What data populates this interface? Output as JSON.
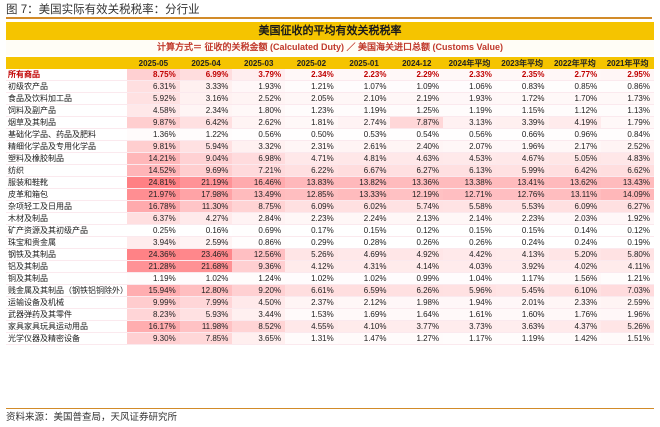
{
  "figure_title": "图 7：美国实际有效关税税率：分行业",
  "banner_title": "美国征收的平均有效关税税率",
  "formula": "计算方式＝ 征收的关税金额 (Calculated Duty) ／ 美国海关进口总额 (Customs Value)",
  "source": "资料来源：美国普查局，天风证券研究所",
  "columns": [
    "",
    "2025-05",
    "2025-04",
    "2025-03",
    "2025-02",
    "2025-01",
    "2024-12",
    "2024年平均",
    "2023年平均",
    "2022年平均",
    "2021年平均"
  ],
  "rows": [
    {
      "name": "所有商品",
      "values": [
        "8.75%",
        "6.99%",
        "3.79%",
        "2.34%",
        "2.23%",
        "2.29%",
        "2.33%",
        "2.35%",
        "2.77%",
        "2.95%"
      ],
      "highlight": true,
      "shade": [
        55,
        40,
        20,
        8,
        8,
        8,
        8,
        8,
        10,
        11
      ]
    },
    {
      "name": "初级农产品",
      "values": [
        "6.31%",
        "3.33%",
        "1.93%",
        "1.21%",
        "1.07%",
        "1.09%",
        "1.06%",
        "0.83%",
        "0.85%",
        "0.86%"
      ],
      "highlight": false,
      "shade": [
        38,
        18,
        9,
        4,
        3,
        3,
        3,
        2,
        2,
        2
      ]
    },
    {
      "name": "食品及饮料加工品",
      "values": [
        "5.92%",
        "3.16%",
        "2.52%",
        "2.05%",
        "2.10%",
        "2.19%",
        "1.93%",
        "1.72%",
        "1.70%",
        "1.73%"
      ],
      "highlight": false,
      "shade": [
        35,
        17,
        13,
        10,
        10,
        10,
        9,
        8,
        8,
        8
      ]
    },
    {
      "name": "饲料及副产品",
      "values": [
        "4.58%",
        "2.34%",
        "1.80%",
        "1.23%",
        "1.19%",
        "1.25%",
        "1.19%",
        "1.15%",
        "1.12%",
        "1.13%"
      ],
      "highlight": false,
      "shade": [
        27,
        12,
        8,
        4,
        4,
        4,
        4,
        4,
        4,
        4
      ]
    },
    {
      "name": "烟草及其制品",
      "values": [
        "9.87%",
        "6.42%",
        "2.62%",
        "1.81%",
        "2.74%",
        "7.87%",
        "3.13%",
        "3.39%",
        "4.19%",
        "1.79%"
      ],
      "highlight": false,
      "shade": [
        58,
        37,
        13,
        8,
        14,
        47,
        16,
        18,
        23,
        8
      ]
    },
    {
      "name": "基础化学品、药品及肥料",
      "values": [
        "1.36%",
        "1.22%",
        "0.56%",
        "0.50%",
        "0.53%",
        "0.54%",
        "0.56%",
        "0.66%",
        "0.96%",
        "0.84%"
      ],
      "highlight": false,
      "shade": [
        5,
        4,
        1,
        1,
        1,
        1,
        1,
        1,
        2,
        2
      ]
    },
    {
      "name": "精细化学品及专用化学品",
      "values": [
        "9.81%",
        "5.94%",
        "3.32%",
        "2.31%",
        "2.61%",
        "2.40%",
        "2.07%",
        "1.96%",
        "2.17%",
        "2.52%"
      ],
      "highlight": false,
      "shade": [
        58,
        35,
        17,
        11,
        13,
        12,
        10,
        9,
        10,
        13
      ]
    },
    {
      "name": "塑料及橡胶制品",
      "values": [
        "14.21%",
        "9.04%",
        "6.98%",
        "4.71%",
        "4.81%",
        "4.63%",
        "4.53%",
        "4.67%",
        "5.05%",
        "4.83%"
      ],
      "highlight": false,
      "shade": [
        85,
        54,
        42,
        27,
        28,
        27,
        26,
        27,
        30,
        28
      ]
    },
    {
      "name": "纺织",
      "values": [
        "14.52%",
        "9.69%",
        "7.21%",
        "6.22%",
        "6.67%",
        "6.27%",
        "6.13%",
        "5.99%",
        "6.42%",
        "6.62%"
      ],
      "highlight": false,
      "shade": [
        87,
        58,
        43,
        37,
        40,
        37,
        36,
        35,
        38,
        39
      ]
    },
    {
      "name": "服装和鞋靴",
      "values": [
        "24.81%",
        "21.19%",
        "16.46%",
        "13.83%",
        "13.82%",
        "13.36%",
        "13.38%",
        "13.41%",
        "13.62%",
        "13.43%"
      ],
      "highlight": false,
      "shade": [
        150,
        128,
        100,
        83,
        83,
        80,
        80,
        80,
        82,
        80
      ]
    },
    {
      "name": "皮革和箱包",
      "values": [
        "21.97%",
        "17.98%",
        "13.49%",
        "12.85%",
        "13.33%",
        "12.19%",
        "12.71%",
        "12.76%",
        "13.11%",
        "14.09%"
      ],
      "highlight": false,
      "shade": [
        133,
        108,
        80,
        77,
        80,
        73,
        76,
        76,
        78,
        85
      ]
    },
    {
      "name": "杂项轻工及日用品",
      "values": [
        "16.78%",
        "11.30%",
        "8.75%",
        "6.09%",
        "6.02%",
        "5.74%",
        "5.58%",
        "5.53%",
        "6.09%",
        "6.27%"
      ],
      "highlight": false,
      "shade": [
        100,
        68,
        52,
        36,
        36,
        34,
        33,
        33,
        36,
        37
      ]
    },
    {
      "name": "木材及制品",
      "values": [
        "6.37%",
        "4.27%",
        "2.84%",
        "2.23%",
        "2.24%",
        "2.13%",
        "2.14%",
        "2.23%",
        "2.03%",
        "1.92%"
      ],
      "highlight": false,
      "shade": [
        38,
        25,
        14,
        10,
        10,
        10,
        10,
        10,
        9,
        9
      ]
    },
    {
      "name": "矿产资源及其初级产品",
      "values": [
        "0.25%",
        "0.16%",
        "0.69%",
        "0.17%",
        "0.15%",
        "0.12%",
        "0.15%",
        "0.15%",
        "0.14%",
        "0.12%"
      ],
      "highlight": false,
      "shade": [
        0,
        0,
        1,
        0,
        0,
        0,
        0,
        0,
        0,
        0
      ]
    },
    {
      "name": "珠宝和贵金属",
      "values": [
        "3.94%",
        "2.59%",
        "0.86%",
        "0.29%",
        "0.28%",
        "0.26%",
        "0.26%",
        "0.24%",
        "0.24%",
        "0.19%"
      ],
      "highlight": false,
      "shade": [
        22,
        13,
        2,
        0,
        0,
        0,
        0,
        0,
        0,
        0
      ]
    },
    {
      "name": "钢铁及其制品",
      "values": [
        "24.36%",
        "23.46%",
        "12.56%",
        "5.26%",
        "4.69%",
        "4.92%",
        "4.42%",
        "4.13%",
        "5.20%",
        "5.80%"
      ],
      "highlight": false,
      "shade": [
        147,
        141,
        75,
        31,
        27,
        29,
        26,
        24,
        31,
        34
      ]
    },
    {
      "name": "铝及其制品",
      "values": [
        "21.28%",
        "21.68%",
        "9.36%",
        "4.12%",
        "4.31%",
        "4.14%",
        "4.03%",
        "3.92%",
        "4.02%",
        "4.11%"
      ],
      "highlight": false,
      "shade": [
        128,
        130,
        56,
        24,
        25,
        24,
        23,
        23,
        23,
        24
      ]
    },
    {
      "name": "铜及其制品",
      "values": [
        "1.19%",
        "1.02%",
        "1.24%",
        "1.02%",
        "1.02%",
        "0.99%",
        "1.04%",
        "1.17%",
        "1.56%",
        "1.21%"
      ],
      "highlight": false,
      "shade": [
        4,
        3,
        4,
        3,
        3,
        3,
        3,
        4,
        7,
        4
      ]
    },
    {
      "name": "贱金属及其制品（钢铁铝铜除外）",
      "values": [
        "15.94%",
        "12.80%",
        "9.20%",
        "6.61%",
        "6.59%",
        "6.26%",
        "5.96%",
        "5.45%",
        "6.10%",
        "7.03%"
      ],
      "highlight": false,
      "shade": [
        96,
        77,
        55,
        39,
        39,
        37,
        35,
        32,
        36,
        42
      ]
    },
    {
      "name": "运输设备及机械",
      "values": [
        "9.99%",
        "7.99%",
        "4.50%",
        "2.37%",
        "2.12%",
        "1.98%",
        "1.94%",
        "2.01%",
        "2.33%",
        "2.59%"
      ],
      "highlight": false,
      "shade": [
        60,
        48,
        26,
        12,
        10,
        9,
        9,
        9,
        11,
        13
      ]
    },
    {
      "name": "武器弹药及其零件",
      "values": [
        "8.23%",
        "5.93%",
        "3.44%",
        "1.53%",
        "1.69%",
        "1.64%",
        "1.61%",
        "1.60%",
        "1.76%",
        "1.96%"
      ],
      "highlight": false,
      "shade": [
        49,
        35,
        18,
        6,
        7,
        7,
        7,
        7,
        8,
        9
      ]
    },
    {
      "name": "家具家具玩具运动用品",
      "values": [
        "16.17%",
        "11.98%",
        "8.52%",
        "4.55%",
        "4.10%",
        "3.77%",
        "3.73%",
        "3.63%",
        "4.37%",
        "5.26%"
      ],
      "highlight": false,
      "shade": [
        97,
        72,
        51,
        27,
        24,
        22,
        22,
        21,
        25,
        31
      ]
    },
    {
      "name": "光学仪器及精密设备",
      "values": [
        "9.30%",
        "7.85%",
        "3.65%",
        "1.31%",
        "1.47%",
        "1.27%",
        "1.17%",
        "1.19%",
        "1.42%",
        "1.51%"
      ],
      "highlight": false,
      "shade": [
        55,
        47,
        19,
        5,
        6,
        5,
        4,
        4,
        5,
        6
      ]
    }
  ]
}
